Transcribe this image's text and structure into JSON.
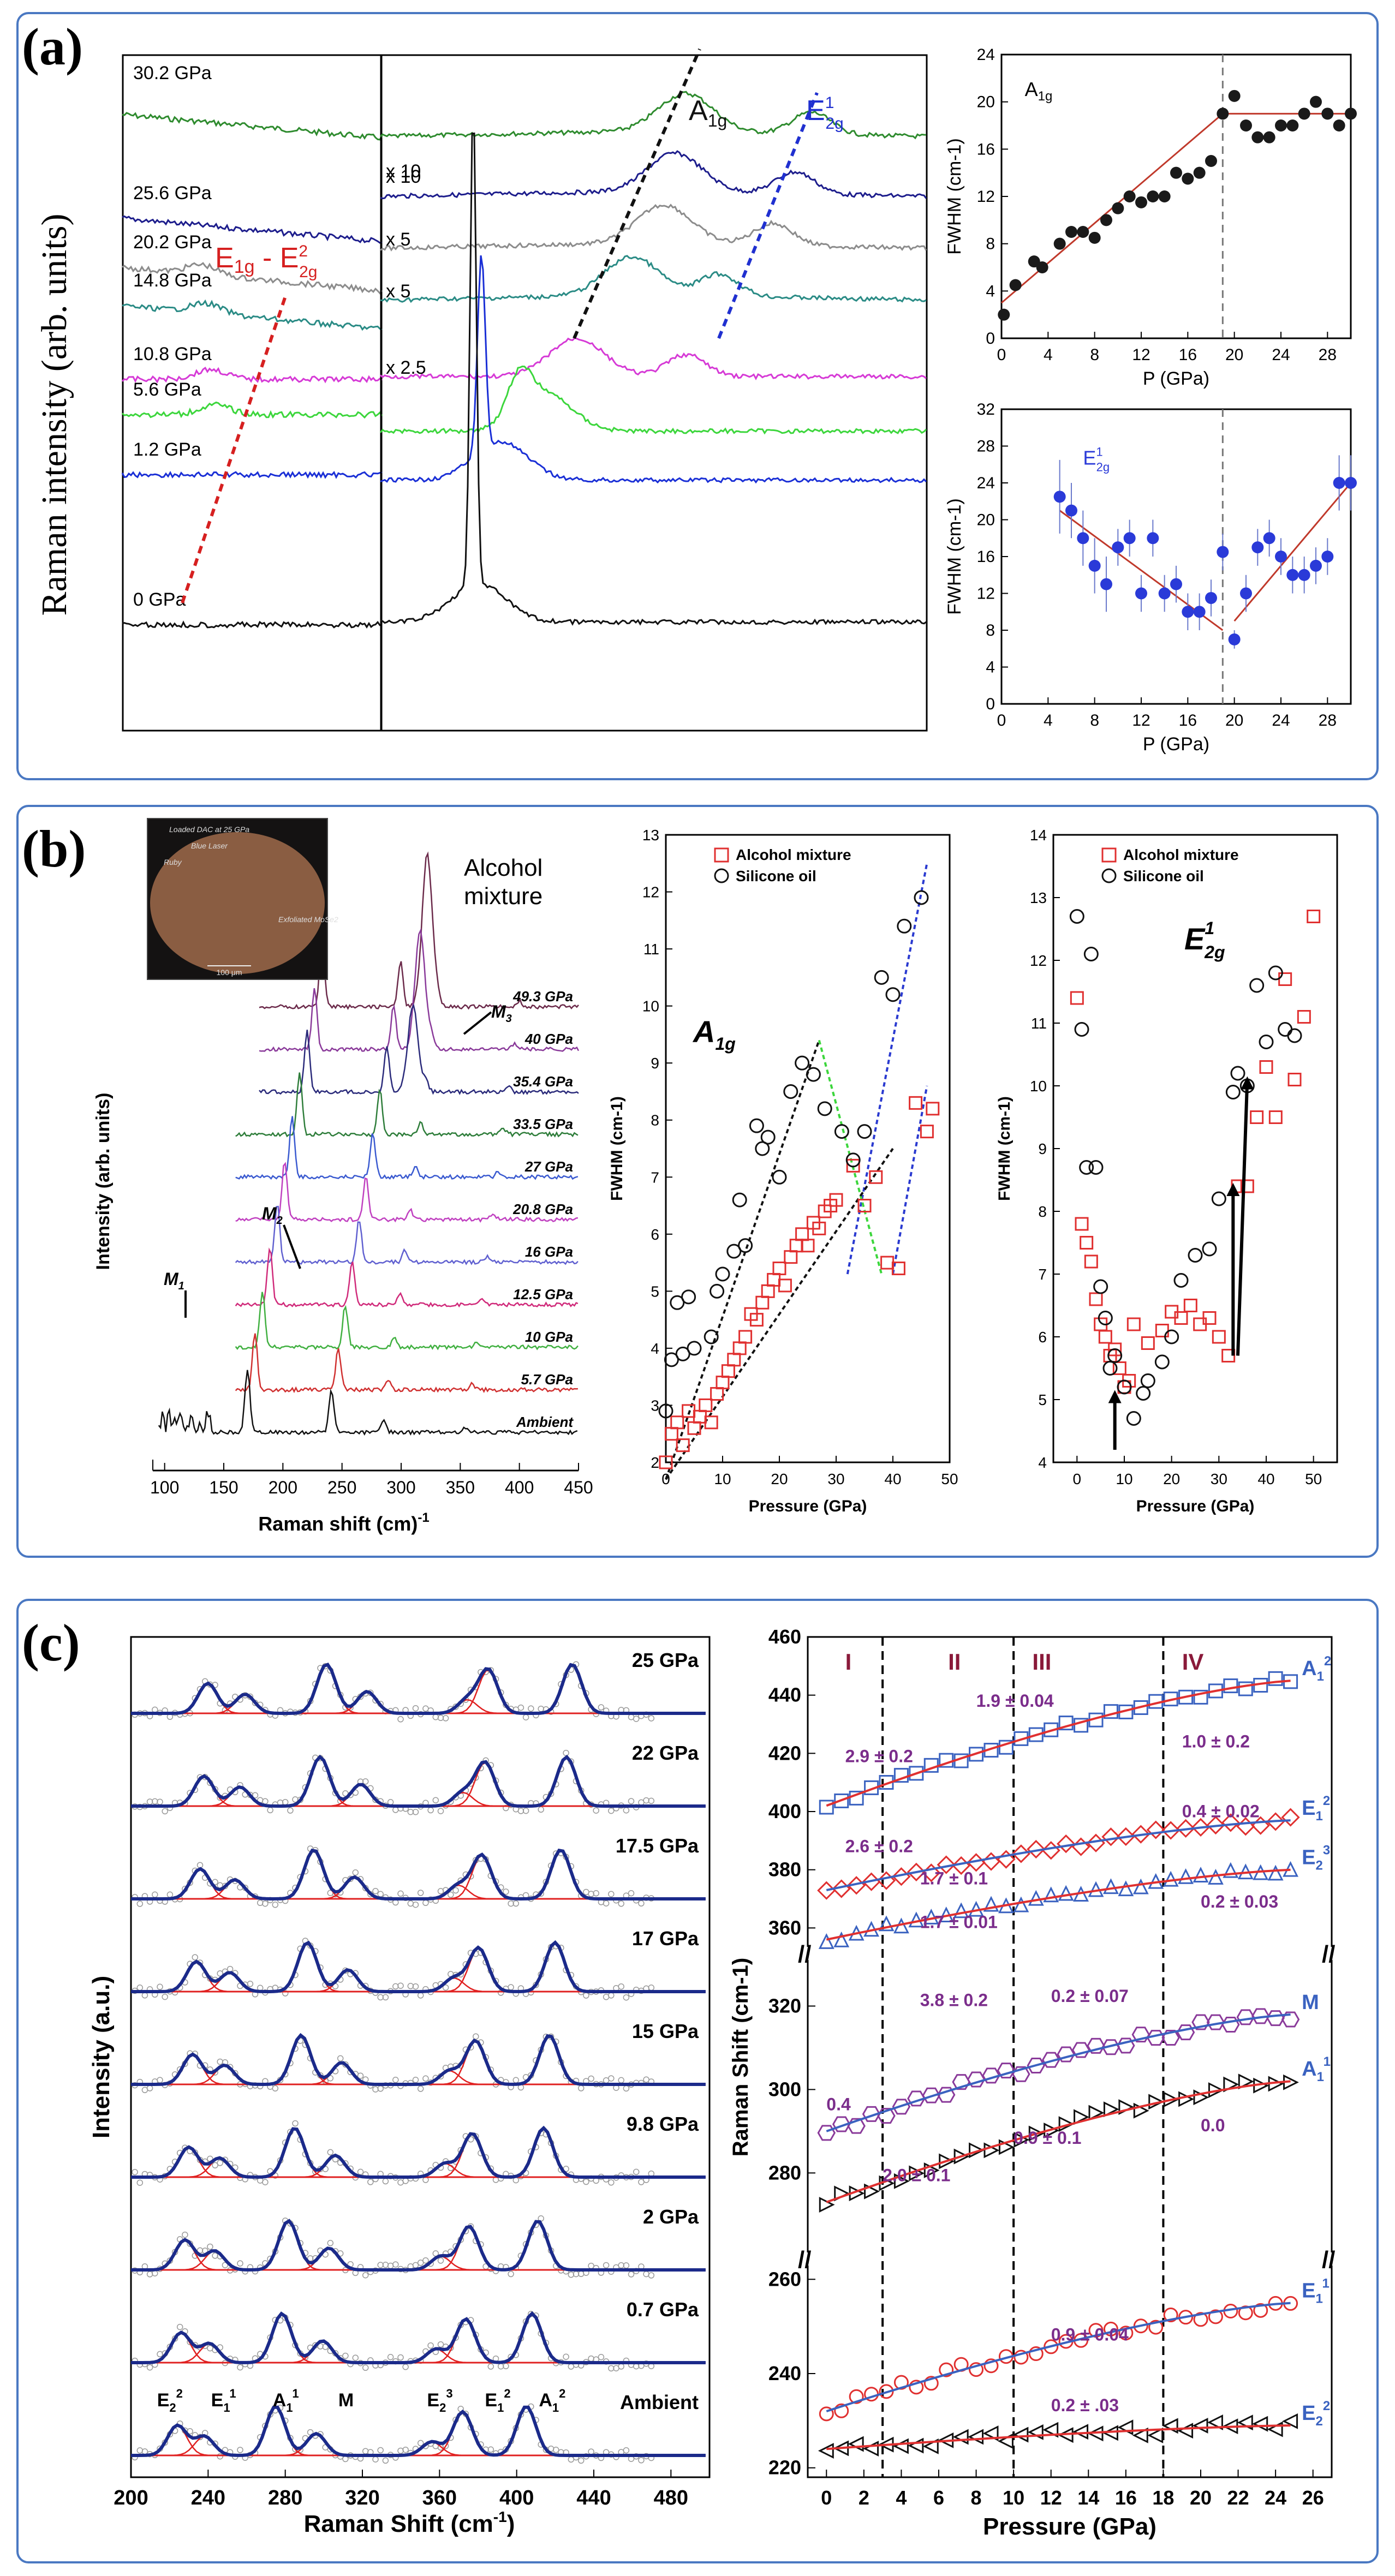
{
  "panel_labels": {
    "a": "(a)",
    "b": "(b)",
    "c": "(c)"
  },
  "colors": {
    "frame": "#4a78c2",
    "fit_red": "#c0392b",
    "pressure_purple": "#7b2d8b"
  },
  "panel_a": {
    "ylabel": "Raman intensity (arb. units)",
    "label_e1g": "E",
    "label_e1g_sub": "1g",
    "label_dash": " - E",
    "label_e2g_sub_top": "2",
    "label_e2g_sub_bottom": "2g",
    "label_a1g": "A",
    "label_a1g_sub": "1g",
    "label_e2g1": "E",
    "label_e2g1_sup": "1",
    "label_e2g1_sub": "2g",
    "spectra": [
      {
        "pressure": "30.2 GPa",
        "color": "#2e8b2e",
        "scale": "x 10"
      },
      {
        "pressure": "25.6 GPa",
        "color": "#1d1d8c",
        "scale": "x 10"
      },
      {
        "pressure": "20.2 GPa",
        "color": "#8c8c8c",
        "scale": "x 5"
      },
      {
        "pressure": "14.8 GPa",
        "color": "#2a8b85",
        "scale": "x 5"
      },
      {
        "pressure": "10.8 GPa",
        "color": "#d63ad6",
        "scale": "x 2.5"
      },
      {
        "pressure": "5.6 GPa",
        "color": "#3cd63c",
        "scale": ""
      },
      {
        "pressure": "1.2 GPa",
        "color": "#1a2fd6",
        "scale": ""
      },
      {
        "pressure": "0 GPa",
        "color": "#111111",
        "scale": ""
      }
    ]
  },
  "chart_data": [
    {
      "type": "scatter",
      "id": "a_fwhm_a1g",
      "title": "A1g",
      "xlabel": "P (GPa)",
      "ylabel": "FWHM (cm-1)",
      "xlim": [
        0,
        30
      ],
      "ylim": [
        0,
        24
      ],
      "xticks": [
        "0",
        "4",
        "8",
        "12",
        "16",
        "20",
        "24",
        "28"
      ],
      "yticks": [
        "0",
        "4",
        "8",
        "12",
        "16",
        "20",
        "24"
      ],
      "x": [
        0.2,
        1.2,
        2.8,
        3.5,
        5,
        6,
        7,
        8,
        9,
        10,
        11,
        12,
        13,
        14,
        15,
        16,
        17,
        18,
        19,
        20,
        21,
        22,
        23,
        24,
        25,
        26,
        27,
        28,
        29,
        30
      ],
      "y": [
        2,
        4.5,
        6.5,
        6,
        8,
        9,
        9,
        8.5,
        10,
        11,
        12,
        11.5,
        12,
        12,
        14,
        13.5,
        14,
        15,
        19,
        20.5,
        18,
        17,
        17,
        18,
        18,
        19,
        20,
        19,
        18,
        19
      ],
      "fit_segments": [
        [
          [
            0,
            3
          ],
          [
            19,
            19
          ]
        ],
        [
          [
            19,
            19
          ],
          [
            30,
            19
          ]
        ]
      ],
      "vline_x": 19
    },
    {
      "type": "scatter",
      "id": "a_fwhm_e2g",
      "title": "E2g1",
      "xlabel": "P (GPa)",
      "ylabel": "FWHM (cm-1)",
      "xlim": [
        0,
        30
      ],
      "ylim": [
        0,
        32
      ],
      "xticks": [
        "0",
        "4",
        "8",
        "12",
        "16",
        "20",
        "24",
        "28"
      ],
      "yticks": [
        "0",
        "4",
        "8",
        "12",
        "16",
        "20",
        "24",
        "28",
        "32"
      ],
      "x": [
        5,
        6,
        7,
        8,
        9,
        10,
        11,
        12,
        13,
        14,
        15,
        16,
        17,
        18,
        19,
        20,
        21,
        22,
        23,
        24,
        25,
        26,
        27,
        28,
        29,
        30
      ],
      "y": [
        22.5,
        21,
        18,
        15,
        13,
        17,
        18,
        12,
        18,
        12,
        13,
        10,
        10,
        11.5,
        16.5,
        7,
        12,
        17,
        18,
        16,
        14,
        14,
        15,
        16,
        24,
        24
      ],
      "err": [
        4,
        3,
        3,
        3,
        3,
        2,
        2,
        2,
        2,
        2,
        2,
        2,
        2,
        2,
        2,
        1,
        2,
        2,
        2,
        2,
        2,
        2,
        2,
        2,
        3,
        3
      ],
      "fit_segments": [
        [
          [
            5,
            21
          ],
          [
            19,
            8
          ]
        ],
        [
          [
            20,
            9
          ],
          [
            30,
            24
          ]
        ]
      ],
      "vline_x": 19
    },
    {
      "type": "line",
      "id": "b_spectra",
      "xlabel": "Raman shift (cm)",
      "xlabel_sup": "-1",
      "ylabel": "Intensity (arb. units)",
      "xlim": [
        90,
        450
      ],
      "xticks": [
        "100",
        "150",
        "200",
        "250",
        "300",
        "350",
        "400",
        "450"
      ],
      "legend_text": "Alcohol mixture",
      "inset_text": [
        "Loaded DAC at 25 GPa",
        "Blue Laser",
        "Ruby",
        "Exfoliated MoSe2",
        "100 μm"
      ],
      "mode_labels": [
        "M1",
        "M2",
        "M3"
      ],
      "series": [
        {
          "name": "49.3 GPa",
          "color": "#6b2a4a"
        },
        {
          "name": "40 GPa",
          "color": "#8a3a9a"
        },
        {
          "name": "35.4 GPa",
          "color": "#2a2a7a"
        },
        {
          "name": "33.5 GPa",
          "color": "#2e7d3a"
        },
        {
          "name": "27 GPa",
          "color": "#3a5ad0"
        },
        {
          "name": "20.8 GPa",
          "color": "#c040c0"
        },
        {
          "name": "16 GPa",
          "color": "#6060d0"
        },
        {
          "name": "12.5 GPa",
          "color": "#d02a7a"
        },
        {
          "name": "10 GPa",
          "color": "#40b040"
        },
        {
          "name": "5.7 GPa",
          "color": "#d03030"
        },
        {
          "name": "Ambient",
          "color": "#111111"
        }
      ]
    },
    {
      "type": "scatter",
      "id": "b_fwhm_a1g",
      "title": "A1g",
      "xlabel": "Pressure (GPa)",
      "ylabel": "FWHM (cm-1)",
      "xlim": [
        0,
        50
      ],
      "ylim": [
        2,
        13
      ],
      "xticks": [
        "0",
        "10",
        "20",
        "30",
        "40",
        "50"
      ],
      "yticks": [
        "2",
        "3",
        "4",
        "5",
        "6",
        "7",
        "8",
        "9",
        "10",
        "11",
        "12",
        "13"
      ],
      "legend": [
        "Alcohol mixture",
        "Silicone oil"
      ],
      "series": [
        {
          "name": "Alcohol mixture",
          "marker": "square",
          "color": "#e03030",
          "x": [
            0,
            1,
            2,
            3,
            4,
            5,
            6,
            7,
            8,
            9,
            10,
            11,
            12,
            13,
            14,
            15,
            16,
            17,
            18,
            19,
            20,
            21,
            22,
            23,
            24,
            25,
            26,
            27,
            28,
            29,
            30,
            33,
            35,
            37,
            39,
            41,
            44,
            46,
            47
          ],
          "y": [
            2,
            2.5,
            2.7,
            2.3,
            2.9,
            2.6,
            2.8,
            3,
            2.7,
            3.2,
            3.4,
            3.6,
            3.8,
            4,
            4.2,
            4.6,
            4.5,
            4.8,
            5,
            5.2,
            5.4,
            5.1,
            5.6,
            5.8,
            6,
            5.8,
            6.2,
            6.1,
            6.4,
            6.5,
            6.6,
            7.2,
            6.5,
            7,
            5.5,
            5.4,
            8.3,
            7.8,
            8.2
          ]
        },
        {
          "name": "Silicone oil",
          "marker": "circle",
          "color": "#111111",
          "x": [
            0,
            1,
            2,
            3,
            4,
            5,
            8,
            9,
            10,
            12,
            13,
            14,
            16,
            17,
            18,
            20,
            22,
            24,
            26,
            28,
            31,
            33,
            35,
            38,
            40,
            42,
            45
          ],
          "y": [
            2.9,
            3.8,
            4.8,
            3.9,
            4.9,
            4,
            4.2,
            5,
            5.3,
            5.7,
            6.6,
            5.8,
            7.9,
            7.5,
            7.7,
            7,
            8.5,
            9,
            8.8,
            8.2,
            7.8,
            7.3,
            7.8,
            10.5,
            10.2,
            11.4,
            11.9
          ]
        }
      ],
      "guide_lines": [
        {
          "color": "#111111",
          "from": [
            0,
            1.7
          ],
          "to": [
            27,
            9.4
          ]
        },
        {
          "color": "#2a3ad0",
          "from": [
            32,
            5.3
          ],
          "to": [
            46,
            12.5
          ]
        },
        {
          "color": "#3cd63c",
          "from": [
            27,
            9.4
          ],
          "to": [
            38,
            5.3
          ]
        },
        {
          "color": "#111111",
          "from": [
            0,
            1.7
          ],
          "to": [
            40,
            7.5
          ]
        },
        {
          "color": "#2a3ad0",
          "from": [
            40,
            5.3
          ],
          "to": [
            46,
            8.6
          ]
        }
      ]
    },
    {
      "type": "scatter",
      "id": "b_fwhm_e2g",
      "title": "E12g",
      "xlabel": "Pressure (GPa)",
      "ylabel": "FWHM (cm-1)",
      "xlim": [
        -5,
        55
      ],
      "ylim": [
        4,
        14
      ],
      "xticks": [
        "0",
        "10",
        "20",
        "30",
        "40",
        "50"
      ],
      "yticks": [
        "4",
        "5",
        "6",
        "7",
        "8",
        "9",
        "10",
        "11",
        "12",
        "13",
        "14"
      ],
      "legend": [
        "Alcohol mixture",
        "Silicone oil"
      ],
      "series": [
        {
          "name": "Alcohol mixture",
          "marker": "square",
          "color": "#e03030",
          "x": [
            0,
            1,
            2,
            3,
            4,
            5,
            6,
            7,
            8,
            9,
            10,
            11,
            12,
            15,
            18,
            20,
            22,
            24,
            26,
            28,
            30,
            32,
            34,
            36,
            38,
            40,
            42,
            44,
            46,
            48,
            50
          ],
          "y": [
            11.4,
            7.8,
            7.5,
            7.2,
            6.6,
            6.2,
            6.0,
            5.7,
            5.8,
            5.5,
            5.2,
            5.3,
            6.2,
            5.9,
            6.1,
            6.4,
            6.3,
            6.5,
            6.2,
            6.3,
            6.0,
            5.7,
            8.4,
            8.4,
            9.5,
            10.3,
            9.5,
            11.7,
            10.1,
            11.1,
            12.7
          ]
        },
        {
          "name": "Silicone oil",
          "marker": "circle",
          "color": "#111111",
          "x": [
            0,
            1,
            2,
            3,
            4,
            5,
            6,
            7,
            8,
            10,
            12,
            14,
            15,
            18,
            20,
            22,
            25,
            28,
            30,
            33,
            34,
            36,
            38,
            40,
            42,
            44,
            46
          ],
          "y": [
            12.7,
            10.9,
            8.7,
            12.1,
            8.7,
            6.8,
            6.3,
            5.5,
            5.7,
            5.2,
            4.7,
            5.1,
            5.3,
            5.6,
            6.0,
            6.9,
            7.3,
            7.4,
            8.2,
            9.9,
            10.2,
            10.0,
            11.6,
            10.7,
            11.8,
            10.9,
            10.8
          ]
        }
      ]
    },
    {
      "type": "line",
      "id": "c_spectra",
      "xlabel": "Raman Shift (cm",
      "xlabel_unit_close": ")",
      "xlabel_sup": "-1",
      "ylabel": "Intensity (a.u.)",
      "xlim": [
        200,
        500
      ],
      "xticks": [
        "200",
        "240",
        "280",
        "320",
        "360",
        "400",
        "440",
        "480"
      ],
      "series": [
        {
          "name": "25 GPa"
        },
        {
          "name": "22 GPa"
        },
        {
          "name": "17.5 GPa"
        },
        {
          "name": "17 GPa"
        },
        {
          "name": "15 GPa"
        },
        {
          "name": "9.8 GPa"
        },
        {
          "name": "2 GPa"
        },
        {
          "name": "0.7 GPa"
        },
        {
          "name": "Ambient"
        }
      ],
      "peak_labels": [
        {
          "text": "E",
          "sub": "2",
          "sup": "2"
        },
        {
          "text": "E",
          "sub": "1",
          "sup": "1"
        },
        {
          "text": "A",
          "sub": "1",
          "sup": "1"
        },
        {
          "text": "M",
          "sub": "",
          "sup": ""
        },
        {
          "text": "E",
          "sub": "2",
          "sup": "3"
        },
        {
          "text": "E",
          "sub": "1",
          "sup": "2"
        },
        {
          "text": "A",
          "sub": "1",
          "sup": "2"
        }
      ]
    },
    {
      "type": "scatter",
      "id": "c_shift_vs_pressure",
      "xlabel": "Pressure (GPa)",
      "ylabel": "Raman Shift (cm-1)",
      "xlim": [
        -1,
        27
      ],
      "xticks": [
        "0",
        "2",
        "4",
        "6",
        "8",
        "10",
        "12",
        "14",
        "16",
        "18",
        "20",
        "22",
        "24",
        "26"
      ],
      "yticks_upper": [
        "360",
        "380",
        "400",
        "420",
        "440",
        "460"
      ],
      "yticks_middle": [
        "280",
        "300",
        "320"
      ],
      "yticks_lower": [
        "220",
        "240",
        "260"
      ],
      "regions": [
        "I",
        "II",
        "III",
        "IV"
      ],
      "region_bounds": [
        3,
        10,
        18
      ],
      "series": [
        {
          "name": "A1 2",
          "color": "#3a62c0",
          "marker": "square",
          "y_start": 402,
          "y_end": 445
        },
        {
          "name": "E1 2",
          "color": "#e03030",
          "marker": "diamond",
          "y_start": 373,
          "y_end": 397
        },
        {
          "name": "E2 3",
          "color": "#3a62c0",
          "marker": "triangle",
          "y_start": 356,
          "y_end": 380
        },
        {
          "name": "M",
          "color": "#8a3a9a",
          "marker": "hexagon",
          "y_start": 290,
          "y_end": 318
        },
        {
          "name": "A1 1",
          "color": "#111111",
          "marker": "triangle-right",
          "y_start": 273,
          "y_end": 302
        },
        {
          "name": "E1 1",
          "color": "#e03030",
          "marker": "circle",
          "y_start": 232,
          "y_end": 255
        },
        {
          "name": "E2 2",
          "color": "#111111",
          "marker": "triangle-left",
          "y_start": 224,
          "y_end": 229
        }
      ],
      "slope_labels": [
        "2.9 ± 0.2",
        "1.9 ± 0.04",
        "1.0 ± 0.2",
        "2.6 ± 0.2",
        "0.4 ± 0.02",
        "1.7 ± 0.1",
        "0.2 ± 0.03",
        "1.7 ± 0.01",
        "3.8 ± 0.2",
        "0.2 ± 0.07",
        "0.4",
        "0.9 ± 0.1",
        "0.0",
        "2.0 ± 0.1",
        "0.9 ± 0.04",
        "0.2 ± .03"
      ]
    }
  ]
}
